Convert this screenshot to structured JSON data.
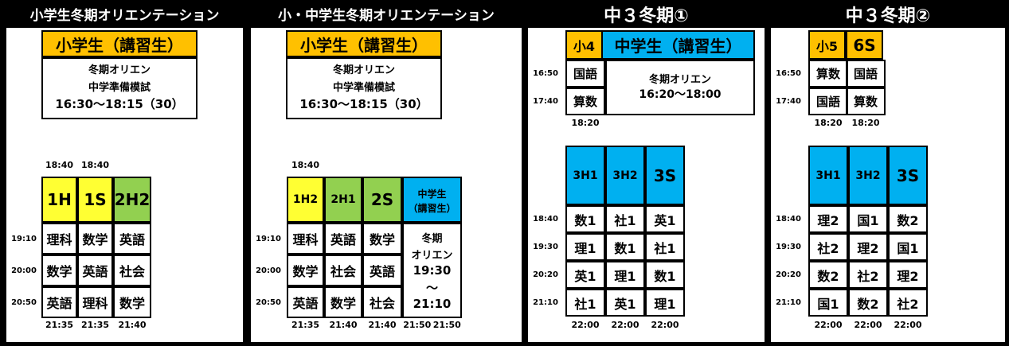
{
  "panels": [
    {
      "title": "小学生冬期オリエンテーション",
      "top_header": "小学生（講習生）",
      "top_text": [
        "冬期オリエン",
        "中学準備模試",
        "16:30～18:15（30）"
      ],
      "start_times": [
        "18:40",
        "18:40"
      ],
      "class_headers": [
        "1H",
        "1S",
        "2H2"
      ],
      "class_colors": [
        "#ffff33",
        "#ffff33",
        "#92d050"
      ],
      "row_times": [
        "19:10",
        "20:00",
        "20:50"
      ],
      "rows": [
        [
          "理科",
          "数学",
          "英語"
        ],
        [
          "数学",
          "英語",
          "社会"
        ],
        [
          "英語",
          "理科",
          "数学"
        ]
      ],
      "end_times": [
        "21:35",
        "21:35",
        "21:40"
      ]
    },
    {
      "title": "小・中学生冬期オリエンテーション",
      "top_header": "小学生（講習生）",
      "top_text": [
        "冬期オリエン",
        "中学準備模試",
        "16:30～18:15（30）"
      ],
      "start_times": [
        "18:40"
      ],
      "class_headers": [
        "1H2",
        "2H1",
        "2S"
      ],
      "class_colors": [
        "#ffff33",
        "#92d050",
        "#92d050"
      ],
      "extra_header": [
        "中学生",
        "（講習生）"
      ],
      "extra_color": "#00b0f0",
      "extra_text": [
        "冬期",
        "オリエン",
        "19:30",
        "～",
        "21:10"
      ],
      "row_times": [
        "19:10",
        "20:00",
        "20:50"
      ],
      "rows": [
        [
          "理科",
          "英語",
          "数学"
        ],
        [
          "数学",
          "社会",
          "英語"
        ],
        [
          "英語",
          "数学",
          "社会"
        ]
      ],
      "end_times": [
        "21:35",
        "21:40",
        "21:40",
        "21:50",
        "21:50"
      ]
    },
    {
      "title": "中３冬期①",
      "top_grades": [
        "小4"
      ],
      "top_header": "中学生（講習生）",
      "top_times": [
        "16:50",
        "17:40"
      ],
      "top_rows": [
        [
          "国語"
        ],
        [
          "算数"
        ]
      ],
      "top_text": [
        "冬期オリエン",
        "16:20～18:00"
      ],
      "top_end": [
        "18:20"
      ],
      "class_headers": [
        "3H1",
        "3H2",
        "3S"
      ],
      "class_colors": [
        "#00b0f0",
        "#00b0f0",
        "#00b0f0"
      ],
      "row_times": [
        "18:40",
        "19:30",
        "20:20",
        "21:10"
      ],
      "rows": [
        [
          "数1",
          "社1",
          "英1"
        ],
        [
          "理1",
          "数1",
          "社1"
        ],
        [
          "英1",
          "理1",
          "数1"
        ],
        [
          "社1",
          "英1",
          "理1"
        ]
      ],
      "end_times": [
        "22:00",
        "22:00",
        "22:00"
      ]
    },
    {
      "title": "中３冬期②",
      "top_grades": [
        "小5",
        "6S"
      ],
      "top_times": [
        "16:50",
        "17:40"
      ],
      "top_rows": [
        [
          "算数",
          "国語"
        ],
        [
          "国語",
          "算数"
        ]
      ],
      "top_end": [
        "18:20",
        "18:20"
      ],
      "class_headers": [
        "3H1",
        "3H2",
        "3S"
      ],
      "class_colors": [
        "#00b0f0",
        "#00b0f0",
        "#00b0f0"
      ],
      "row_times": [
        "18:40",
        "19:30",
        "20:20",
        "21:10"
      ],
      "rows": [
        [
          "理2",
          "国1",
          "数2"
        ],
        [
          "社2",
          "理2",
          "国1"
        ],
        [
          "数2",
          "社2",
          "理2"
        ],
        [
          "国1",
          "数2",
          "社2"
        ]
      ],
      "end_times": [
        "22:00",
        "22:00",
        "22:00"
      ]
    }
  ]
}
